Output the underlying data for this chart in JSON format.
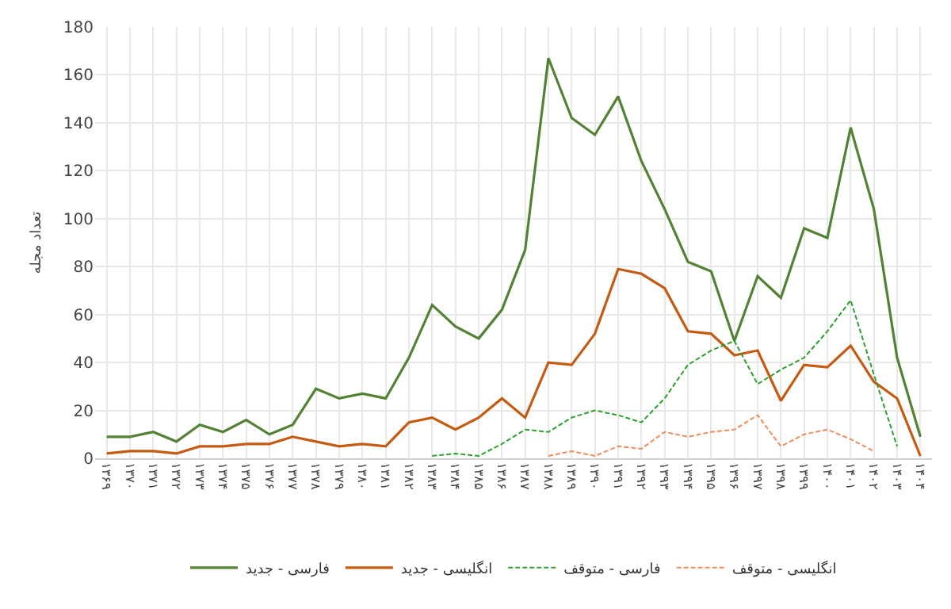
{
  "chart_data": {
    "type": "line",
    "ylabel": "تعداد مجله",
    "categories": [
      "۱۳۶۹",
      "۱۳۷۰",
      "۱۳۷۱",
      "۱۳۷۲",
      "۱۳۷۳",
      "۱۳۷۴",
      "۱۳۷۵",
      "۱۳۷۶",
      "۱۳۷۷",
      "۱۳۷۸",
      "۱۳۷۹",
      "۱۳۸۰",
      "۱۳۸۱",
      "۱۳۸۲",
      "۱۳۸۳",
      "۱۳۸۴",
      "۱۳۸۵",
      "۱۳۸۶",
      "۱۳۸۷",
      "۱۳۸۸",
      "۱۳۸۹",
      "۱۳۹۰",
      "۱۳۹۱",
      "۱۳۹۲",
      "۱۳۹۳",
      "۱۳۹۴",
      "۱۳۹۵",
      "۱۳۹۶",
      "۱۳۹۷",
      "۱۳۹۸",
      "۱۳۹۹",
      "۱۴۰۰",
      "۱۴۰۱",
      "۱۴۰۲",
      "۱۴۰۳",
      "۱۴۰۴"
    ],
    "series": [
      {
        "name": "فارسی - جدید",
        "color": "#548235",
        "line_style": "solid",
        "values": [
          9,
          9,
          11,
          7,
          14,
          11,
          16,
          10,
          14,
          29,
          25,
          27,
          25,
          42,
          64,
          55,
          50,
          62,
          87,
          167,
          142,
          135,
          151,
          124,
          104,
          82,
          78,
          49,
          76,
          67,
          96,
          92,
          138,
          104,
          42,
          9
        ]
      },
      {
        "name": "انگلیسی - جدید",
        "color": "#c55a11",
        "line_style": "solid",
        "values": [
          2,
          3,
          3,
          2,
          5,
          5,
          6,
          6,
          9,
          7,
          5,
          6,
          5,
          15,
          17,
          12,
          17,
          25,
          17,
          40,
          39,
          52,
          79,
          77,
          71,
          53,
          52,
          43,
          45,
          24,
          39,
          38,
          47,
          32,
          25,
          1
        ]
      },
      {
        "name": "فارسی - متوقف",
        "color": "#2ca02c",
        "line_style": "dashed",
        "values": [
          null,
          null,
          null,
          null,
          null,
          null,
          null,
          null,
          null,
          null,
          null,
          null,
          null,
          null,
          1,
          2,
          1,
          6,
          12,
          11,
          17,
          20,
          18,
          15,
          25,
          39,
          45,
          49,
          31,
          37,
          42,
          53,
          66,
          35,
          5,
          null
        ]
      },
      {
        "name": "انگلیسی - متوقف",
        "color": "#f08c5a",
        "line_style": "dashed",
        "values": [
          null,
          null,
          null,
          null,
          null,
          null,
          null,
          null,
          null,
          null,
          null,
          null,
          null,
          null,
          null,
          null,
          null,
          null,
          null,
          1,
          3,
          1,
          5,
          4,
          11,
          9,
          11,
          12,
          18,
          5,
          10,
          12,
          8,
          3,
          null,
          null
        ]
      }
    ],
    "ylim": [
      0,
      180
    ],
    "yticks": [
      0,
      20,
      40,
      60,
      80,
      100,
      120,
      140,
      160,
      180
    ],
    "grid": true,
    "legend": "bottom"
  }
}
